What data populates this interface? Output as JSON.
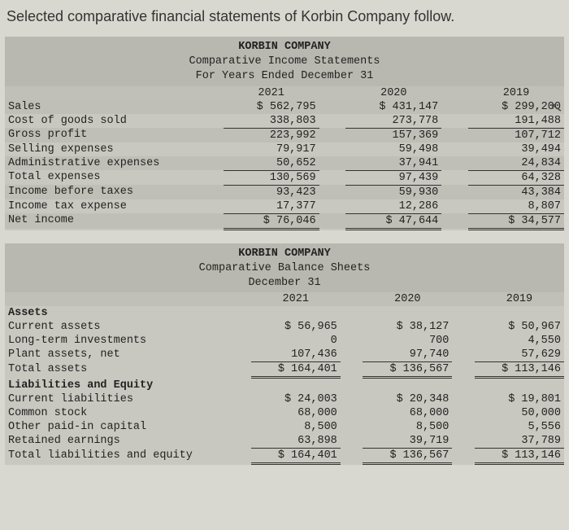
{
  "page_title": "Selected comparative financial statements of Korbin Company follow.",
  "cursor_glyph": "↖",
  "income": {
    "company": "KORBIN COMPANY",
    "title": "Comparative Income Statements",
    "period": "For Years Ended December 31",
    "years": [
      "2021",
      "2020",
      "2019"
    ],
    "rows": [
      {
        "label": "Sales",
        "v": [
          "$ 562,795",
          "$ 431,147",
          "$ 299,200"
        ],
        "band": true
      },
      {
        "label": "Cost of goods sold",
        "v": [
          "338,803",
          "273,778",
          "191,488"
        ]
      },
      {
        "label": "Gross profit",
        "v": [
          "223,992",
          "157,369",
          "107,712"
        ],
        "band": true,
        "top": true
      },
      {
        "label": "Selling expenses",
        "v": [
          "79,917",
          "59,498",
          "39,494"
        ]
      },
      {
        "label": "Administrative expenses",
        "v": [
          "50,652",
          "37,941",
          "24,834"
        ],
        "band": true
      },
      {
        "label": "Total expenses",
        "v": [
          "130,569",
          "97,439",
          "64,328"
        ],
        "top": true
      },
      {
        "label": "Income before taxes",
        "v": [
          "93,423",
          "59,930",
          "43,384"
        ],
        "band": true,
        "top": true
      },
      {
        "label": "Income tax expense",
        "v": [
          "17,377",
          "12,286",
          "8,807"
        ]
      },
      {
        "label": "Net income",
        "v": [
          "$ 76,046",
          "$ 47,644",
          "$ 34,577"
        ],
        "band": true,
        "top": true,
        "dbl": true
      }
    ],
    "col_widths": [
      "36%",
      "5%",
      "18%",
      "5%",
      "18%",
      "5%",
      "18%"
    ]
  },
  "balance": {
    "company": "KORBIN COMPANY",
    "title": "Comparative Balance Sheets",
    "period": "December 31",
    "years": [
      "2021",
      "2020",
      "2019"
    ],
    "rows": [
      {
        "label": "Assets",
        "section": true
      },
      {
        "label": "Current assets",
        "v": [
          "$ 56,965",
          "$ 38,127",
          "$ 50,967"
        ]
      },
      {
        "label": "Long-term investments",
        "v": [
          "0",
          "700",
          "4,550"
        ]
      },
      {
        "label": "Plant assets, net",
        "v": [
          "107,436",
          "97,740",
          "57,629"
        ]
      },
      {
        "label": "Total assets",
        "v": [
          "$ 164,401",
          "$ 136,567",
          "$ 113,146"
        ],
        "top": true,
        "dbl": true
      },
      {
        "label": "Liabilities and Equity",
        "section": true
      },
      {
        "label": "Current liabilities",
        "v": [
          "$ 24,003",
          "$ 20,348",
          "$ 19,801"
        ]
      },
      {
        "label": "Common stock",
        "v": [
          "68,000",
          "68,000",
          "50,000"
        ]
      },
      {
        "label": "Other paid-in capital",
        "v": [
          "8,500",
          "8,500",
          "5,556"
        ]
      },
      {
        "label": "Retained earnings",
        "v": [
          "63,898",
          "39,719",
          "37,789"
        ]
      },
      {
        "label": "Total liabilities and equity",
        "v": [
          "$ 164,401",
          "$ 136,567",
          "$ 113,146"
        ],
        "top": true,
        "dbl": true
      }
    ],
    "col_widths": [
      "40%",
      "4%",
      "16%",
      "4%",
      "16%",
      "4%",
      "16%"
    ]
  },
  "colors": {
    "page_bg": "#d8d8d0",
    "block_bg": "#c8c8c0",
    "band_bg": "#bfbfb7",
    "header_bg": "#b8b8b0",
    "rule": "#333333",
    "text": "#222222"
  }
}
